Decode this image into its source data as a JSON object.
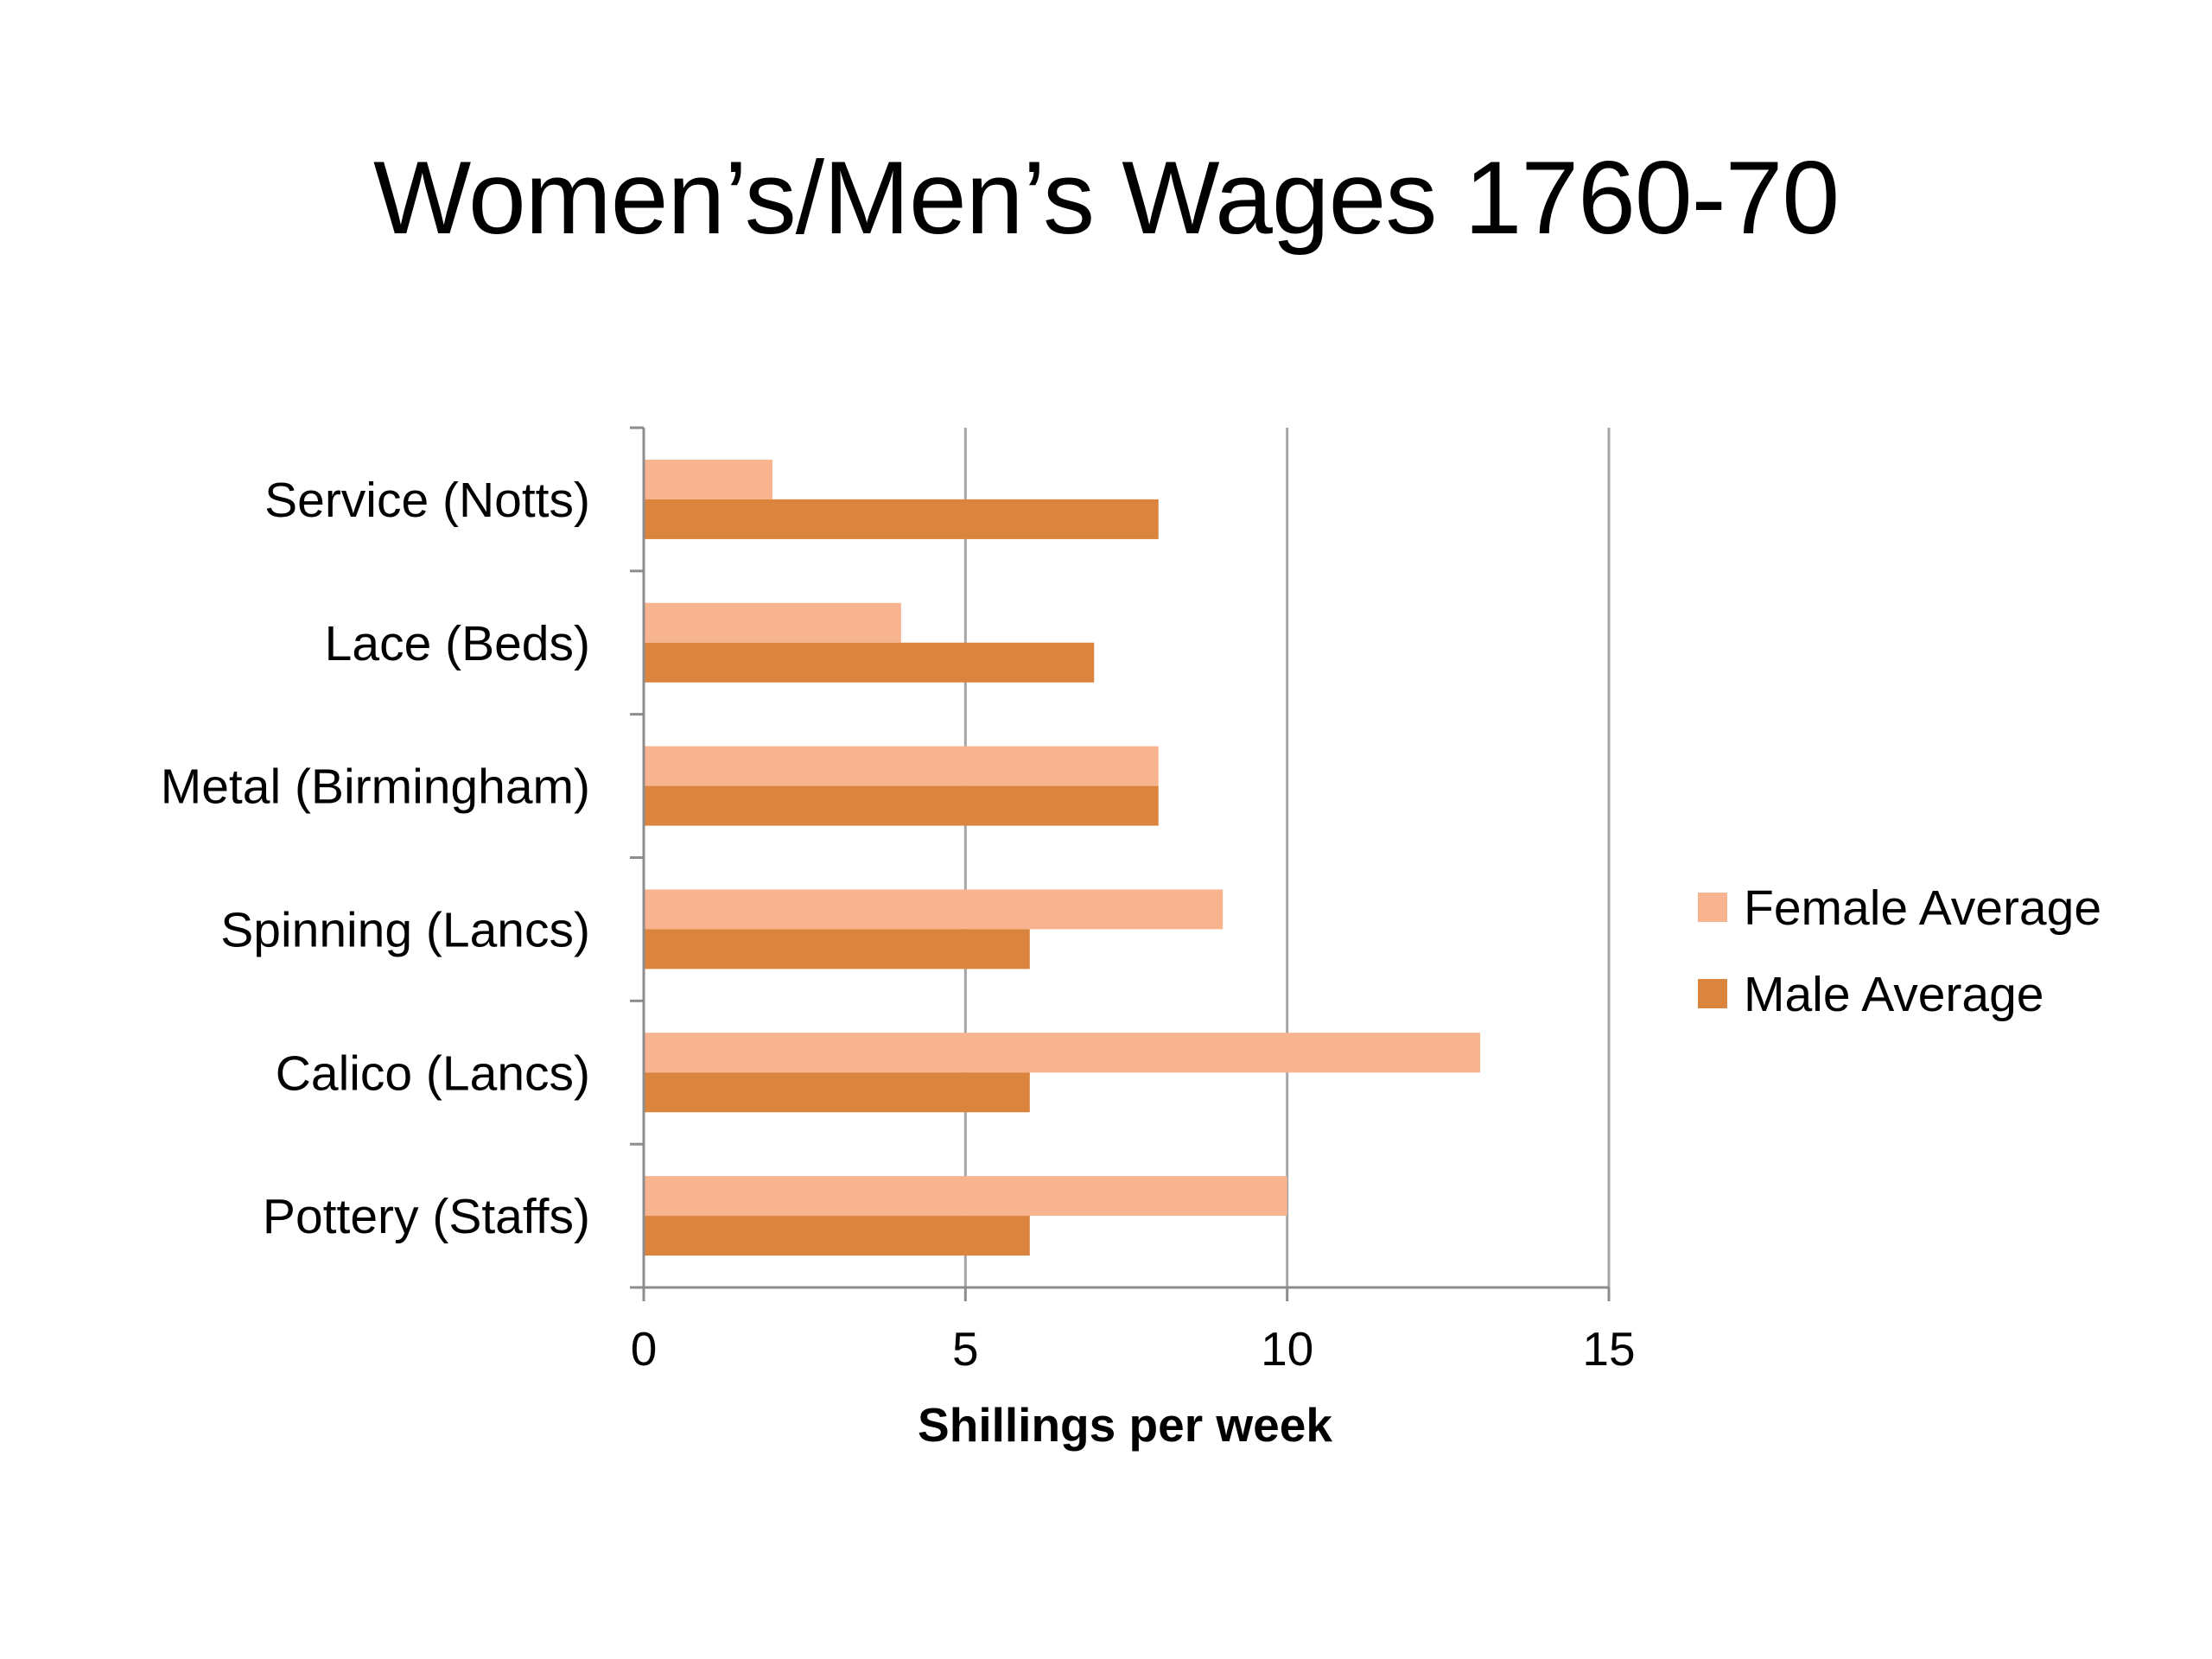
{
  "chart_data": {
    "type": "bar",
    "orientation": "horizontal",
    "title": "Women’s/Men’s Wages 1760-70",
    "xlabel": "Shillings per week",
    "ylabel": "",
    "xlim": [
      0,
      15
    ],
    "xticks": [
      0,
      5,
      10,
      15
    ],
    "grid": true,
    "legend_position": "right",
    "categories": [
      "Service (Notts)",
      "Lace (Beds)",
      "Metal (Birmingham)",
      "Spinning (Lancs)",
      "Calico (Lancs)",
      "Pottery (Staffs)"
    ],
    "series": [
      {
        "name": "Female Average",
        "color": "#f8b48f",
        "values": [
          2,
          4,
          8,
          9,
          13,
          10
        ]
      },
      {
        "name": "Male Average",
        "color": "#db843d",
        "values": [
          8,
          7,
          8,
          6,
          6,
          6
        ]
      }
    ]
  }
}
